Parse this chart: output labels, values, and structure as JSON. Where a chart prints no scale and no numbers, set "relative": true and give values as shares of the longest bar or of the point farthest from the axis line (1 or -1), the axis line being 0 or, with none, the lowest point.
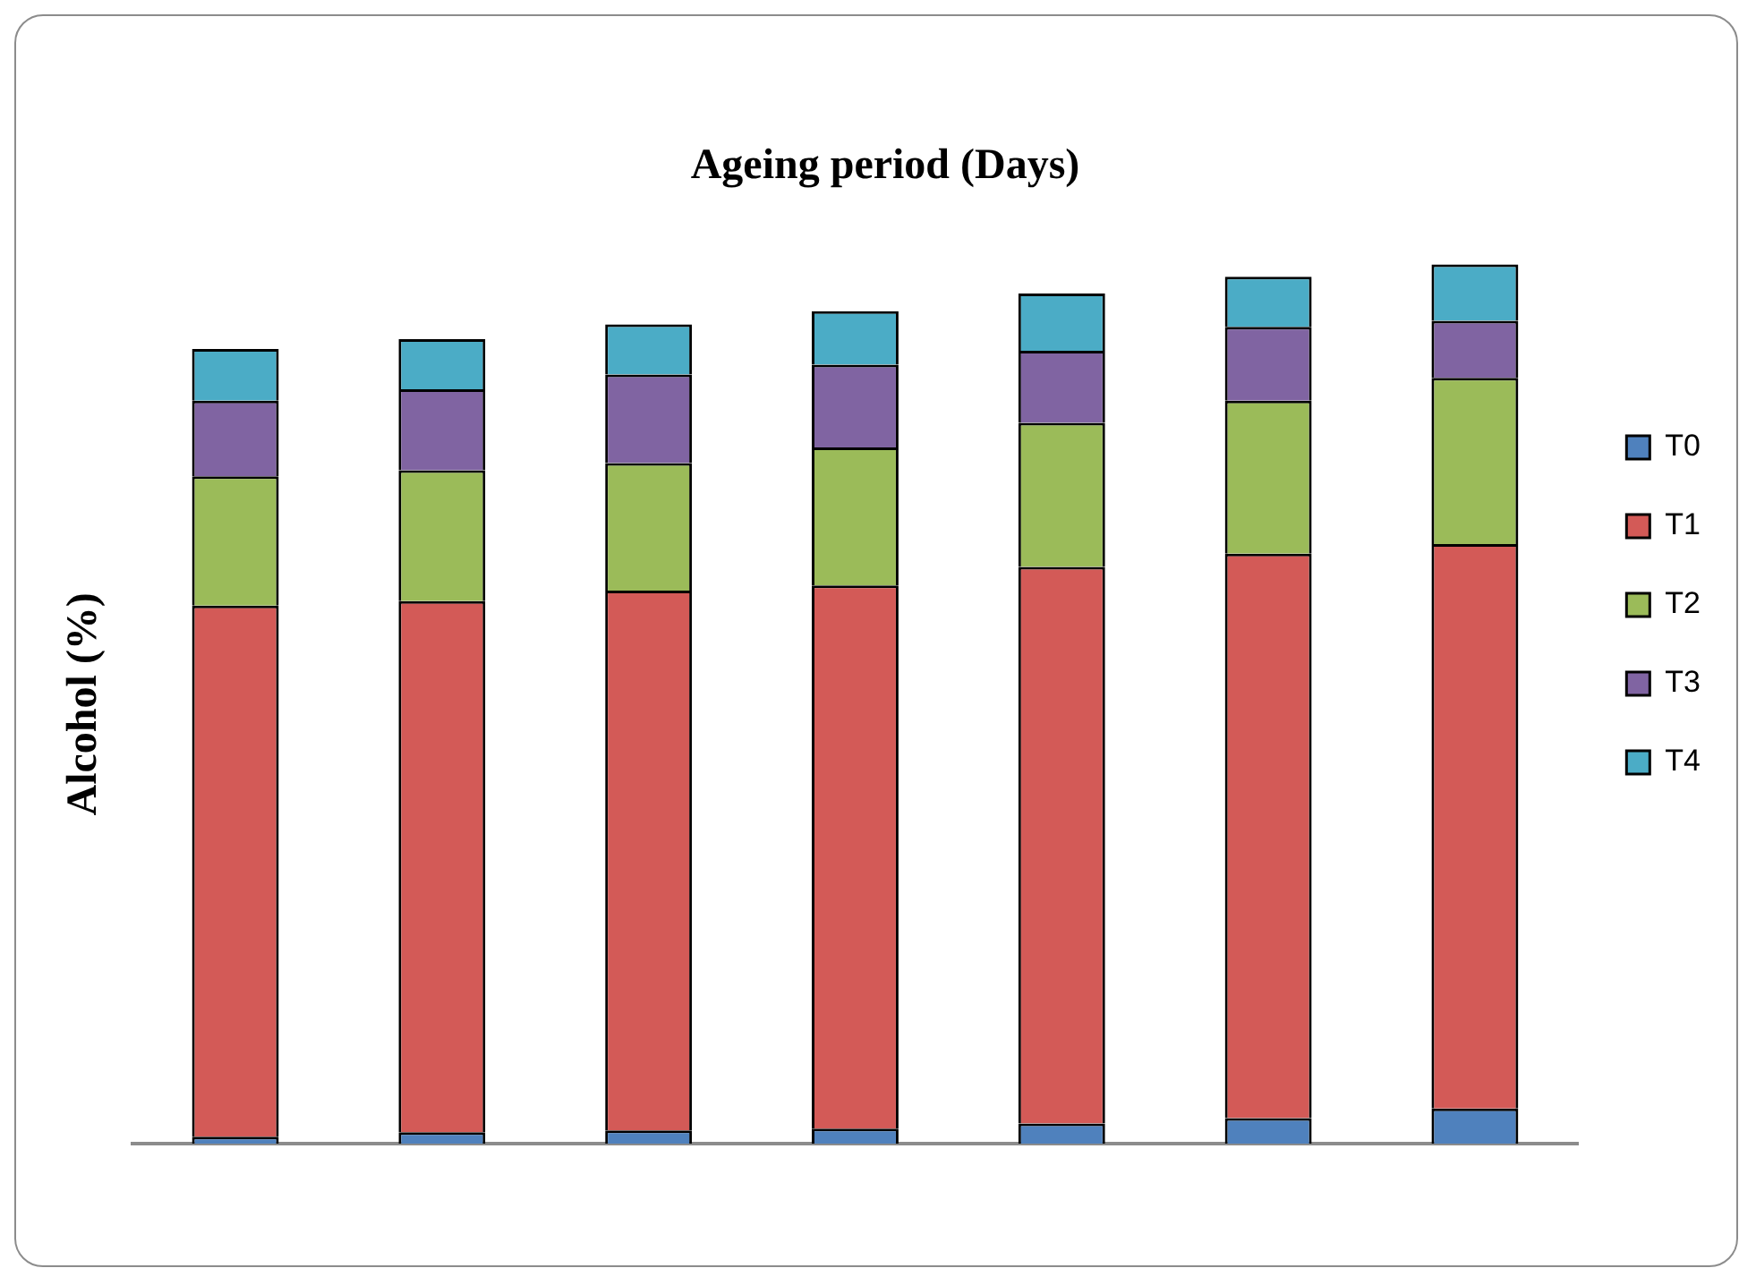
{
  "chart_data": {
    "type": "bar",
    "title": "Ageing period (Days)",
    "ylabel": "Alcohol (%)",
    "stacked": true,
    "relative": true,
    "legend": "right",
    "categories": [
      null,
      null,
      null,
      null,
      null,
      null,
      null
    ],
    "series": [
      {
        "name": "T0",
        "color": "#4f81bd",
        "values": [
          0.008,
          0.013,
          0.015,
          0.017,
          0.023,
          0.029,
          0.04
        ]
      },
      {
        "name": "T1",
        "color": "#d35a57",
        "values": [
          0.604,
          0.604,
          0.614,
          0.618,
          0.633,
          0.642,
          0.642
        ]
      },
      {
        "name": "T2",
        "color": "#9bbb59",
        "values": [
          0.147,
          0.149,
          0.145,
          0.157,
          0.164,
          0.174,
          0.189
        ]
      },
      {
        "name": "T3",
        "color": "#8064a2",
        "values": [
          0.086,
          0.092,
          0.101,
          0.094,
          0.082,
          0.084,
          0.065
        ]
      },
      {
        "name": "T4",
        "color": "#4bacc6",
        "values": [
          0.059,
          0.057,
          0.057,
          0.061,
          0.065,
          0.057,
          0.064
        ]
      }
    ]
  }
}
